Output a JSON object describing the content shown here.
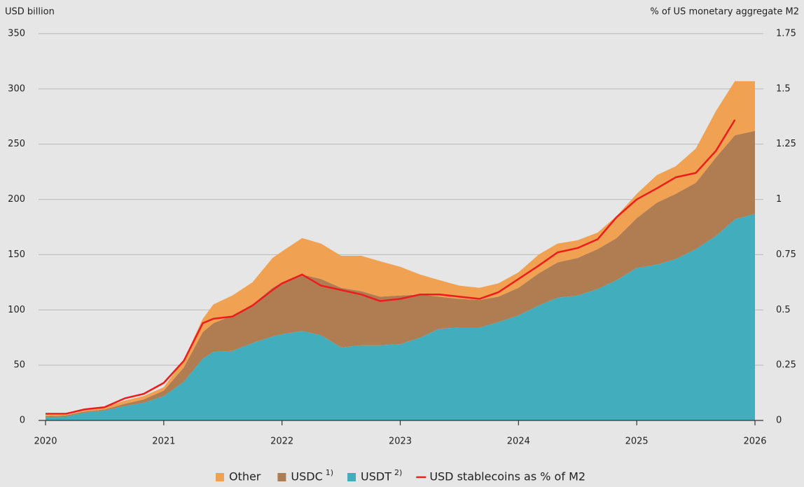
{
  "chart_data": {
    "type": "stacked-area",
    "y_label": "USD billion",
    "y2_label": "% of US monetary aggregate M2",
    "x": [
      2020.0,
      2020.17,
      2020.33,
      2020.5,
      2020.67,
      2020.83,
      2021.0,
      2021.17,
      2021.33,
      2021.42,
      2021.58,
      2021.75,
      2021.92,
      2022.0,
      2022.17,
      2022.33,
      2022.5,
      2022.67,
      2022.83,
      2023.0,
      2023.17,
      2023.33,
      2023.5,
      2023.67,
      2023.83,
      2024.0,
      2024.17,
      2024.33,
      2024.5,
      2024.67,
      2024.83,
      2025.0,
      2025.17,
      2025.33,
      2025.5,
      2025.67,
      2025.83,
      2026.0
    ],
    "series": [
      {
        "name": "Other",
        "color": "#f0a152",
        "values": [
          1,
          0.5,
          1,
          2,
          3,
          3,
          3,
          7,
          12,
          17,
          18,
          20,
          27,
          28,
          33,
          32,
          29,
          32,
          32,
          26,
          18,
          15,
          12,
          11,
          12,
          14,
          17,
          17,
          16,
          15,
          20,
          22,
          25,
          25,
          31,
          42,
          49,
          45
        ]
      },
      {
        "name": "USDC",
        "note": "1)",
        "color": "#b07c52",
        "values": [
          1,
          1,
          1,
          1,
          2,
          3,
          5,
          13,
          24,
          26,
          32,
          35,
          44,
          47,
          51,
          51,
          54,
          49,
          44,
          44,
          39,
          29,
          26,
          25,
          23,
          25,
          29,
          32,
          34,
          36,
          38,
          45,
          56,
          59,
          60,
          71,
          76,
          75
        ]
      },
      {
        "name": "USDT",
        "note": "2)",
        "color": "#41adbd",
        "values": [
          3,
          3.5,
          7,
          9,
          13,
          16,
          22,
          35,
          56,
          62,
          63,
          70,
          76,
          78,
          81,
          77,
          66,
          68,
          68,
          69,
          75,
          83,
          84,
          84,
          89,
          95,
          104,
          111,
          113,
          119,
          127,
          138,
          141,
          146,
          155,
          167,
          182,
          187
        ]
      },
      {
        "name": "USD stablecoins as % of M2",
        "color": "#ee1c1c",
        "type": "line",
        "axis": "y2",
        "values": [
          0.03,
          0.03,
          0.05,
          0.06,
          0.1,
          0.12,
          0.17,
          0.27,
          0.44,
          0.46,
          0.47,
          0.52,
          0.59,
          0.62,
          0.66,
          0.61,
          0.59,
          0.57,
          0.54,
          0.55,
          0.57,
          0.57,
          0.56,
          0.55,
          0.58,
          0.64,
          0.7,
          0.76,
          0.78,
          0.82,
          0.92,
          1.0,
          1.05,
          1.1,
          1.12,
          1.22,
          1.36,
          null
        ]
      }
    ],
    "xlim": [
      2020,
      2026
    ],
    "xticks": [
      2020,
      2021,
      2022,
      2023,
      2024,
      2025,
      2026
    ],
    "ylim": [
      0,
      350
    ],
    "yticks": [
      0,
      50,
      100,
      150,
      200,
      250,
      300,
      350
    ],
    "y2lim": [
      0,
      1.75
    ],
    "y2ticks": [
      0,
      0.25,
      0.5,
      0.75,
      1,
      1.25,
      1.5,
      1.75
    ],
    "grid": true,
    "legend": "bottom"
  }
}
